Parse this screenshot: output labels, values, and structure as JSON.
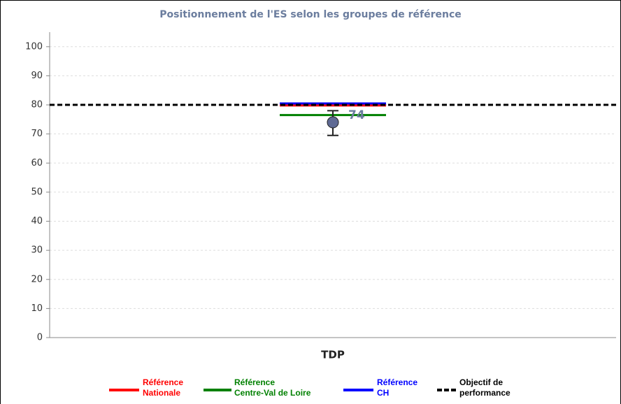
{
  "chart_data": {
    "type": "point_range",
    "title": "Positionnement de l'ES selon les groupes de référence",
    "categories": [
      "TDP"
    ],
    "values": [
      74
    ],
    "value_labels": [
      "74"
    ],
    "lower": [
      69.5
    ],
    "upper": [
      78
    ],
    "color": "#5f6a94",
    "references": [
      {
        "name": "Référence\nNationale",
        "color": "#ff0000",
        "value": 79.8,
        "dashed": false
      },
      {
        "name": "Référence\nCentre-Val de Loire",
        "color": "#008000",
        "value": 76.5,
        "dashed": false
      },
      {
        "name": "Référence\nCH",
        "color": "#0000ff",
        "value": 80.5,
        "dashed": false
      },
      {
        "name": "Objectif de\nperformance",
        "color": "#000000",
        "value": 80,
        "dashed": true
      }
    ],
    "ylim": [
      0,
      105
    ],
    "yticks": [
      0,
      10,
      20,
      30,
      40,
      50,
      60,
      70,
      80,
      90,
      100
    ],
    "grid": true
  }
}
